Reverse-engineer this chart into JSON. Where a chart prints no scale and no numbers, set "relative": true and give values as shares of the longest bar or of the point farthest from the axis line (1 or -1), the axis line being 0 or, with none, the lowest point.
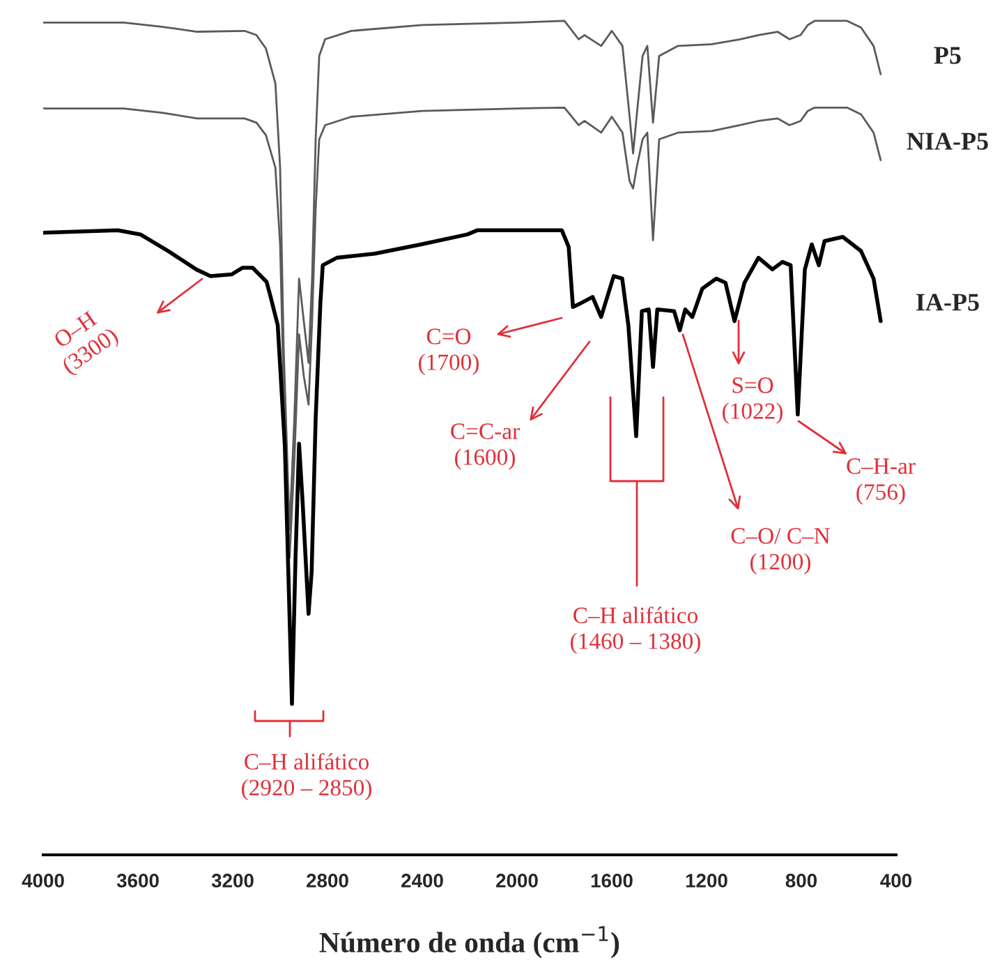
{
  "chart_data": {
    "type": "line",
    "relative": true,
    "xlabel": "Número de onda (cm$^{−1}$)",
    "xlim": [
      4000,
      400
    ],
    "xticks": [
      4000,
      3600,
      3200,
      2800,
      2400,
      2000,
      1600,
      1200,
      800,
      400
    ],
    "tick_labels": "x",
    "grid": false,
    "legend": false,
    "marker": "none",
    "line_style": "solid",
    "series": [
      {
        "name": "P5",
        "color": "#5a5a5a",
        "x": [
          4000,
          3660,
          3500,
          3350,
          3150,
          3100,
          3060,
          3020,
          3000,
          2985,
          2960,
          2940,
          2920,
          2900,
          2880,
          2865,
          2850,
          2835,
          2810,
          2700,
          2400,
          2000,
          1800,
          1740,
          1715,
          1645,
          1600,
          1555,
          1525,
          1510,
          1495,
          1470,
          1450,
          1426,
          1400,
          1320,
          1177,
          1058,
          981,
          900,
          850,
          803,
          773,
          744,
          607,
          548,
          495,
          465
        ],
        "values": [
          0.998,
          0.998,
          0.993,
          0.987,
          0.988,
          0.983,
          0.967,
          0.925,
          0.824,
          0.607,
          0.39,
          0.523,
          0.691,
          0.64,
          0.59,
          0.691,
          0.858,
          0.958,
          0.978,
          0.988,
          0.995,
          0.998,
          1.0,
          0.978,
          0.983,
          0.97,
          0.988,
          0.97,
          0.886,
          0.841,
          0.886,
          0.958,
          0.97,
          0.878,
          0.958,
          0.97,
          0.972,
          0.978,
          0.983,
          0.987,
          0.978,
          0.983,
          0.995,
          1.0,
          1.0,
          0.992,
          0.97,
          0.936
        ]
      },
      {
        "name": "NIA-P5",
        "color": "#5a5a5a",
        "x": [
          4000,
          3660,
          3500,
          3350,
          3150,
          3100,
          3060,
          3020,
          3000,
          2985,
          2960,
          2940,
          2920,
          2900,
          2880,
          2865,
          2850,
          2835,
          2810,
          2700,
          2400,
          2000,
          1800,
          1740,
          1715,
          1645,
          1600,
          1555,
          1525,
          1510,
          1495,
          1470,
          1450,
          1426,
          1400,
          1320,
          1177,
          1058,
          981,
          900,
          850,
          803,
          773,
          744,
          607,
          548,
          495,
          465
        ],
        "values": [
          0.895,
          0.895,
          0.89,
          0.883,
          0.883,
          0.878,
          0.863,
          0.824,
          0.732,
          0.557,
          0.356,
          0.473,
          0.624,
          0.574,
          0.54,
          0.64,
          0.774,
          0.858,
          0.875,
          0.885,
          0.892,
          0.895,
          0.896,
          0.875,
          0.88,
          0.866,
          0.885,
          0.866,
          0.808,
          0.799,
          0.824,
          0.858,
          0.866,
          0.737,
          0.858,
          0.866,
          0.868,
          0.875,
          0.88,
          0.883,
          0.875,
          0.88,
          0.892,
          0.896,
          0.896,
          0.888,
          0.866,
          0.833
        ]
      },
      {
        "name": "IA-P5",
        "color": "#000000",
        "x": [
          4000,
          3685,
          3590,
          3472,
          3354,
          3294,
          3205,
          3158,
          3116,
          3057,
          3040,
          3010,
          2980,
          2950,
          2935,
          2920,
          2905,
          2880,
          2867,
          2850,
          2830,
          2820,
          2760,
          2600,
          2405,
          2209,
          2167,
          1811,
          1782,
          1764,
          1734,
          1681,
          1645,
          1592,
          1556,
          1530,
          1497,
          1473,
          1444,
          1426,
          1408,
          1337,
          1313,
          1290,
          1260,
          1218,
          1159,
          1120,
          1082,
          1040,
          981,
          922,
          880,
          845,
          815,
          785,
          756,
          726,
          702,
          625,
          548,
          495,
          465
        ],
        "values": [
          0.746,
          0.749,
          0.744,
          0.724,
          0.702,
          0.694,
          0.696,
          0.704,
          0.704,
          0.687,
          0.669,
          0.635,
          0.49,
          0.181,
          0.356,
          0.493,
          0.423,
          0.289,
          0.339,
          0.523,
          0.662,
          0.707,
          0.716,
          0.721,
          0.732,
          0.744,
          0.749,
          0.749,
          0.729,
          0.657,
          0.661,
          0.669,
          0.645,
          0.694,
          0.691,
          0.635,
          0.502,
          0.652,
          0.654,
          0.585,
          0.654,
          0.652,
          0.629,
          0.654,
          0.645,
          0.679,
          0.691,
          0.686,
          0.64,
          0.686,
          0.716,
          0.702,
          0.711,
          0.707,
          0.528,
          0.702,
          0.732,
          0.707,
          0.736,
          0.741,
          0.724,
          0.691,
          0.64
        ]
      }
    ],
    "annotations": [
      "O–H\n(3300)",
      "C=O\n(1700)",
      "C=C-ar\n(1600)",
      "C–H alifático\n(1460 – 1380)",
      "C–O/ C–N\n(1200)",
      "S=O\n(1022)",
      "C–H-ar\n(756)",
      "C–H alifático\n(2920 – 2850)"
    ]
  }
}
